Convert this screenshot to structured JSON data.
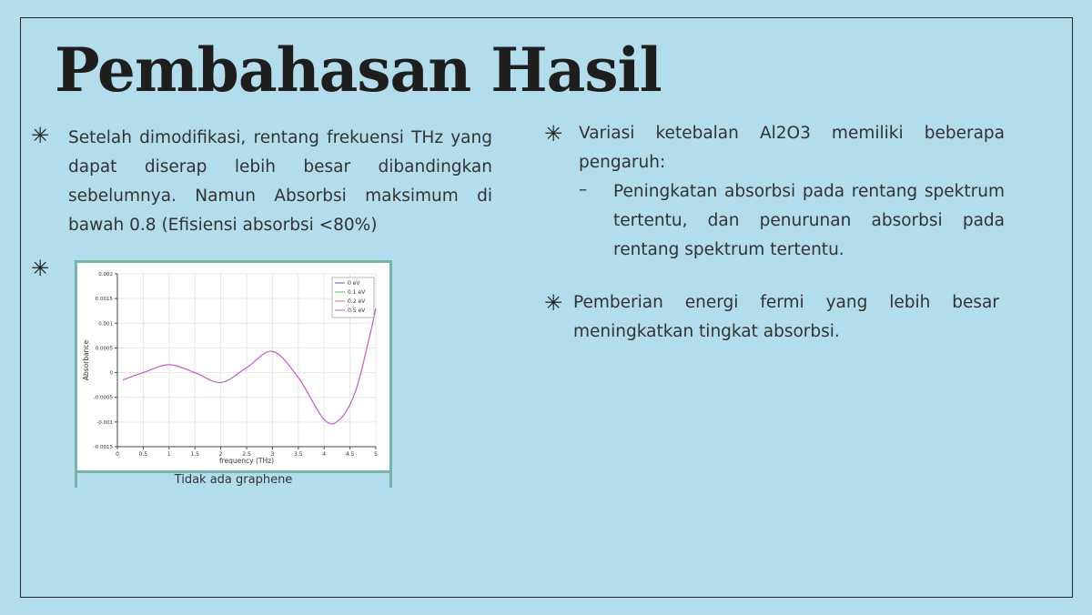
{
  "slide": {
    "title": "Pembahasan Hasil",
    "left_column": {
      "bullet_1": "Setelah dimodifikasi, rentang frekuensi THz yang dapat diserap lebih besar dibandingkan sebelumnya. Namun Absorbsi maksimum di bawah 0.8 (Efisiensi absorbsi <80%)",
      "figure_caption": "Tidak ada graphene"
    },
    "right_column": {
      "bullet_1": "Variasi ketebalan Al2O3 memiliki beberapa pengaruh:",
      "sub_bullet_1": "Peningkatan absorbsi pada rentang spektrum tertentu, dan penurunan absorbsi pada rentang spektrum tertentu.",
      "bullet_2": "Pemberian energi fermi yang lebih besar meningkatkan tingkat absorbsi."
    },
    "bullet_symbol": "✳",
    "dash_symbol": "–",
    "colors": {
      "background": "#b3dcec",
      "figure_border": "#76b3a8",
      "series_0": "#4a60d8",
      "series_1": "#5ab85a",
      "series_2": "#e06b6b",
      "series_3": "#c55ac9"
    }
  },
  "chart_data": {
    "type": "line",
    "xlabel": "frequency (THz)",
    "ylabel": "Absorbance",
    "xlim": [
      0,
      5
    ],
    "ylim": [
      -0.0015,
      0.002
    ],
    "x_ticks": [
      0,
      0.5,
      1,
      1.5,
      2,
      2.5,
      3,
      3.5,
      4,
      4.5,
      5
    ],
    "x_tick_labels": [
      "0",
      "0.5",
      "1",
      "1.5",
      "2",
      "2.5",
      "3",
      "3.5",
      "4",
      "4.5",
      "5"
    ],
    "y_ticks": [
      -0.0015,
      -0.001,
      -0.0005,
      0,
      0.0005,
      0.001,
      0.0015,
      0.002
    ],
    "y_tick_labels": [
      "-0.0015",
      "-0.001",
      "-0.0005",
      "0",
      "0.0005",
      "0.001",
      "0.0015",
      "0.002"
    ],
    "legend_position": "top-right",
    "grid": true,
    "series": [
      {
        "name": "0 eV"
      },
      {
        "name": "0.1 eV"
      },
      {
        "name": "0.2 eV"
      },
      {
        "name": "0.5 eV",
        "x": [
          0.1,
          0.5,
          1.0,
          1.5,
          2.0,
          2.5,
          3.0,
          3.5,
          4.0,
          4.3,
          4.6,
          4.85,
          5.0
        ],
        "y": [
          -0.00015,
          0.0,
          0.00016,
          0.0,
          -0.0002,
          0.0001,
          0.00043,
          -0.0001,
          -0.00095,
          -0.00095,
          -0.0004,
          0.0006,
          0.0013
        ]
      }
    ]
  }
}
